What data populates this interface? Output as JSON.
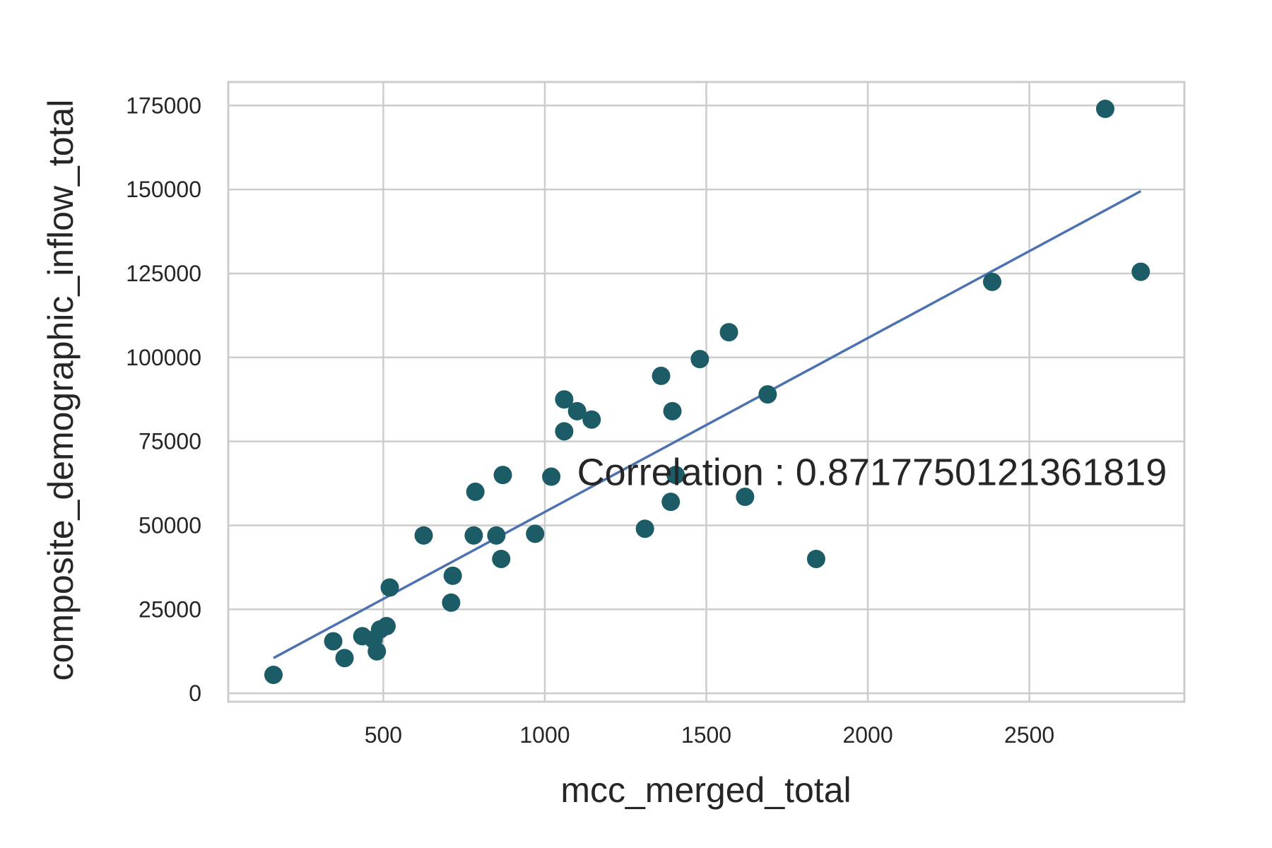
{
  "chart_data": {
    "type": "scatter",
    "xlabel": "mcc_merged_total",
    "ylabel": "composite_demographic_inflow_total",
    "xlim": [
      20,
      2980
    ],
    "ylim": [
      -2500,
      182000
    ],
    "xticks": [
      500,
      1000,
      1500,
      2000,
      2500
    ],
    "yticks": [
      0,
      25000,
      50000,
      75000,
      100000,
      125000,
      150000,
      175000
    ],
    "grid": true,
    "annotation": "Correlation : 0.8717750121361819",
    "annotation_pos": [
      1100,
      62000
    ],
    "marker_color": "#1b5c66",
    "line_color": "#4c72b0",
    "points": [
      [
        160,
        5500
      ],
      [
        345,
        15500
      ],
      [
        380,
        10500
      ],
      [
        435,
        17000
      ],
      [
        470,
        16000
      ],
      [
        480,
        12500
      ],
      [
        490,
        19000
      ],
      [
        510,
        20000
      ],
      [
        520,
        31500
      ],
      [
        625,
        47000
      ],
      [
        710,
        27000
      ],
      [
        715,
        35000
      ],
      [
        780,
        47000
      ],
      [
        785,
        60000
      ],
      [
        850,
        47000
      ],
      [
        865,
        40000
      ],
      [
        870,
        65000
      ],
      [
        970,
        47500
      ],
      [
        1020,
        64500
      ],
      [
        1060,
        87500
      ],
      [
        1060,
        78000
      ],
      [
        1100,
        84000
      ],
      [
        1145,
        81500
      ],
      [
        1310,
        49000
      ],
      [
        1360,
        94500
      ],
      [
        1390,
        57000
      ],
      [
        1395,
        84000
      ],
      [
        1405,
        65000
      ],
      [
        1480,
        99500
      ],
      [
        1570,
        107500
      ],
      [
        1620,
        58500
      ],
      [
        1690,
        89000
      ],
      [
        1840,
        40000
      ],
      [
        2385,
        122500
      ],
      [
        2735,
        174000
      ],
      [
        2845,
        125500
      ]
    ],
    "fit_line": [
      [
        160,
        10500
      ],
      [
        2845,
        149500
      ]
    ]
  }
}
